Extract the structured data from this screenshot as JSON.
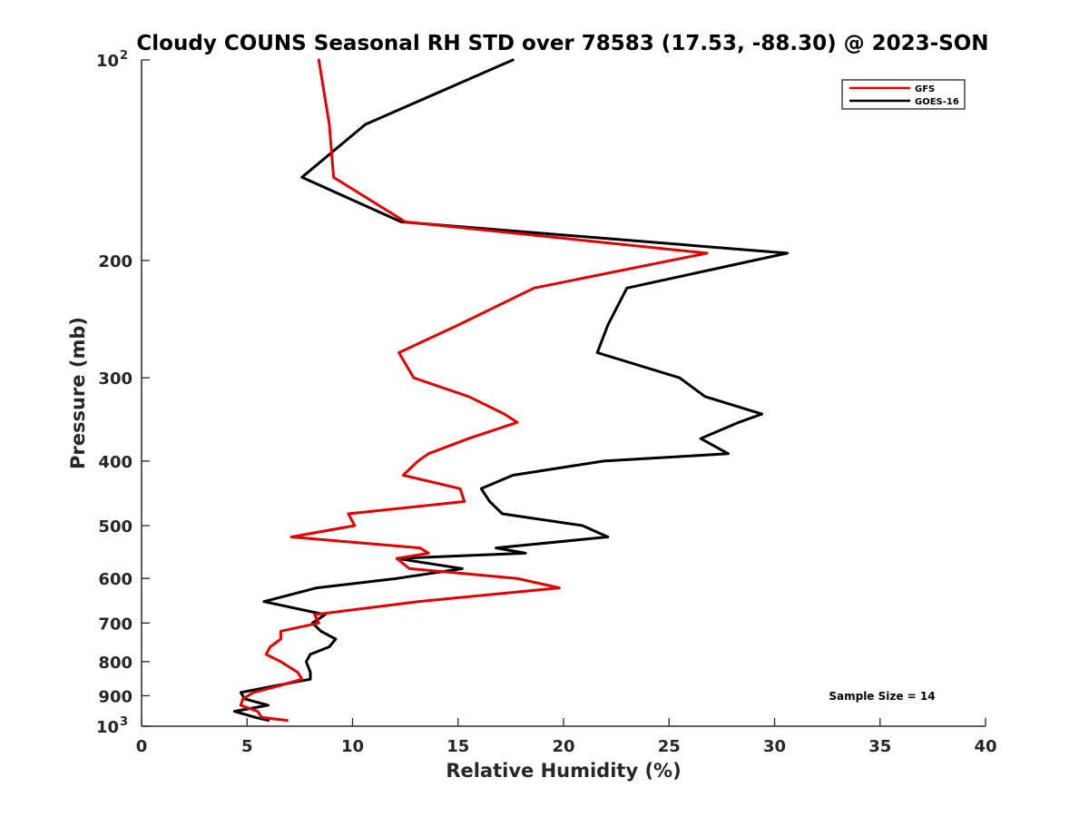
{
  "chart_data": {
    "type": "line",
    "title": "Cloudy COUNS Seasonal RH STD over 78583 (17.53, -88.30) @ 2023-SON",
    "xlabel": "Relative Humidity (%)",
    "ylabel": "Pressure (mb)",
    "xlim": [
      0,
      40
    ],
    "ylim": [
      100,
      1000
    ],
    "yscale": "log",
    "y_reversed": true,
    "x_ticks": [
      0,
      5,
      10,
      15,
      20,
      25,
      30,
      35,
      40
    ],
    "x_tick_labels": [
      "0",
      "5",
      "10",
      "15",
      "20",
      "25",
      "30",
      "35",
      "40"
    ],
    "y_ticks": [
      {
        "value": 100,
        "base": "10",
        "exp": "2"
      },
      {
        "value": 200,
        "label": "200"
      },
      {
        "value": 300,
        "label": "300"
      },
      {
        "value": 400,
        "label": "400"
      },
      {
        "value": 500,
        "label": "500"
      },
      {
        "value": 600,
        "label": "600"
      },
      {
        "value": 700,
        "label": "700"
      },
      {
        "value": 800,
        "label": "800"
      },
      {
        "value": 900,
        "label": "900"
      },
      {
        "value": 1000,
        "base": "10",
        "exp": "3"
      }
    ],
    "legend_position": "top-right",
    "series": [
      {
        "name": "GFS",
        "color": "#e00000",
        "points": [
          [
            8.4,
            100
          ],
          [
            8.9,
            125
          ],
          [
            9.1,
            150
          ],
          [
            12.5,
            175
          ],
          [
            26.8,
            195
          ],
          [
            18.6,
            220
          ],
          [
            15.0,
            250
          ],
          [
            12.2,
            275
          ],
          [
            12.9,
            300
          ],
          [
            15.5,
            320
          ],
          [
            17.2,
            340
          ],
          [
            17.8,
            350
          ],
          [
            15.5,
            370
          ],
          [
            13.6,
            390
          ],
          [
            13.1,
            400
          ],
          [
            12.4,
            420
          ],
          [
            15.1,
            440
          ],
          [
            15.3,
            460
          ],
          [
            9.8,
            480
          ],
          [
            10.1,
            500
          ],
          [
            7.1,
            520
          ],
          [
            13.2,
            540
          ],
          [
            13.6,
            550
          ],
          [
            12.1,
            560
          ],
          [
            12.7,
            580
          ],
          [
            17.8,
            600
          ],
          [
            19.8,
            620
          ],
          [
            13.1,
            650
          ],
          [
            8.2,
            680
          ],
          [
            8.4,
            700
          ],
          [
            6.6,
            720
          ],
          [
            6.6,
            740
          ],
          [
            6.1,
            760
          ],
          [
            5.9,
            780
          ],
          [
            6.6,
            800
          ],
          [
            7.4,
            830
          ],
          [
            7.6,
            850
          ],
          [
            6.5,
            870
          ],
          [
            5.3,
            890
          ],
          [
            4.8,
            910
          ],
          [
            4.7,
            930
          ],
          [
            5.5,
            950
          ],
          [
            5.7,
            970
          ],
          [
            6.9,
            980
          ]
        ]
      },
      {
        "name": "GOES-16",
        "color": "#000000",
        "points": [
          [
            17.6,
            100
          ],
          [
            10.6,
            125
          ],
          [
            7.6,
            150
          ],
          [
            12.3,
            175
          ],
          [
            30.6,
            195
          ],
          [
            23.0,
            220
          ],
          [
            22.1,
            250
          ],
          [
            21.6,
            275
          ],
          [
            25.5,
            300
          ],
          [
            26.7,
            320
          ],
          [
            29.4,
            340
          ],
          [
            28.3,
            350
          ],
          [
            26.5,
            370
          ],
          [
            27.8,
            390
          ],
          [
            21.9,
            400
          ],
          [
            17.6,
            420
          ],
          [
            16.1,
            440
          ],
          [
            16.5,
            460
          ],
          [
            17.1,
            480
          ],
          [
            20.9,
            500
          ],
          [
            22.1,
            520
          ],
          [
            16.8,
            540
          ],
          [
            18.2,
            550
          ],
          [
            12.1,
            560
          ],
          [
            15.2,
            580
          ],
          [
            12.1,
            600
          ],
          [
            8.3,
            620
          ],
          [
            5.8,
            650
          ],
          [
            8.7,
            680
          ],
          [
            8.1,
            700
          ],
          [
            8.5,
            720
          ],
          [
            9.2,
            740
          ],
          [
            8.9,
            760
          ],
          [
            8.0,
            780
          ],
          [
            7.8,
            800
          ],
          [
            8.0,
            830
          ],
          [
            8.0,
            850
          ],
          [
            6.3,
            870
          ],
          [
            4.7,
            890
          ],
          [
            4.9,
            910
          ],
          [
            6.0,
            930
          ],
          [
            4.4,
            950
          ],
          [
            5.4,
            970
          ],
          [
            6.0,
            980
          ]
        ]
      }
    ],
    "annotation": "Sample Size = 14"
  }
}
